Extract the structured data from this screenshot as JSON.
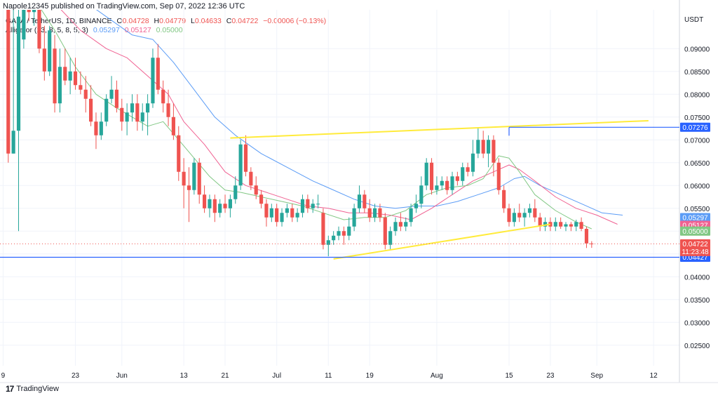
{
  "header": {
    "published": "Napole12345 published on TradingView.com, Sep 07, 2022 12:36 UTC"
  },
  "legend": {
    "symbol": "GALA / TetherUS, 1D, BINANCE",
    "ohlc": [
      {
        "k": "O",
        "v": "0.04728"
      },
      {
        "k": "H",
        "v": "0.04779"
      },
      {
        "k": "L",
        "v": "0.04633"
      },
      {
        "k": "C",
        "v": "0.04722"
      }
    ],
    "change": "−0.00006 (−0.13%)",
    "alligator_label": "Alligator (13, 8, 5, 8, 5, 3)",
    "alligator_values": [
      "0.05297",
      "0.05127",
      "0.05000"
    ]
  },
  "brand": {
    "logo": "17",
    "name": "TradingView"
  },
  "colors": {
    "up": "#26a69a",
    "down": "#ef5350",
    "jaw": "#5b9cf6",
    "teeth": "#f06292",
    "lips": "#81c784",
    "trend": "#ffeb3b",
    "level": "#2962ff",
    "grid": "#f0f3fa",
    "text": "#131722"
  },
  "chart_data": {
    "type": "candlestick",
    "currency_label": "USDT",
    "y_ticks": [
      "0.09000",
      "0.08500",
      "0.08000",
      "0.07500",
      "0.07000",
      "0.06500",
      "0.06000",
      "0.05500",
      "0.05000",
      "0.04500",
      "0.04000",
      "0.03500",
      "0.03000",
      "0.02500"
    ],
    "y_range": [
      0.0205,
      0.0985
    ],
    "x_ticks": [
      {
        "label": "9",
        "d": 0
      },
      {
        "label": "23",
        "d": 14
      },
      {
        "label": "Jun",
        "d": 23
      },
      {
        "label": "13",
        "d": 35
      },
      {
        "label": "21",
        "d": 43
      },
      {
        "label": "Jul",
        "d": 53
      },
      {
        "label": "11",
        "d": 63
      },
      {
        "label": "19",
        "d": 71
      },
      {
        "label": "Aug",
        "d": 84
      },
      {
        "label": "15",
        "d": 98
      },
      {
        "label": "23",
        "d": 106
      },
      {
        "label": "Sep",
        "d": 115
      },
      {
        "label": "12",
        "d": 126
      }
    ],
    "x_range": [
      -0.6,
      131
    ],
    "candles": [
      [
        1,
        0.115,
        0.13,
        0.065,
        0.067
      ],
      [
        2,
        0.067,
        0.099,
        0.067,
        0.072
      ],
      [
        3,
        0.072,
        0.099,
        0.05,
        0.097
      ],
      [
        4,
        0.092,
        0.125,
        0.09,
        0.105
      ],
      [
        5,
        0.105,
        0.118,
        0.096,
        0.098
      ],
      [
        6,
        0.098,
        0.11,
        0.095,
        0.108
      ],
      [
        7,
        0.108,
        0.112,
        0.089,
        0.09
      ],
      [
        8,
        0.09,
        0.095,
        0.083,
        0.085
      ],
      [
        9,
        0.085,
        0.095,
        0.084,
        0.094
      ],
      [
        10,
        0.09,
        0.093,
        0.076,
        0.078
      ],
      [
        11,
        0.078,
        0.09,
        0.076,
        0.086
      ],
      [
        12,
        0.086,
        0.09,
        0.082,
        0.083
      ],
      [
        13,
        0.083,
        0.088,
        0.08,
        0.085
      ],
      [
        14,
        0.085,
        0.088,
        0.081,
        0.082
      ],
      [
        15,
        0.082,
        0.085,
        0.08,
        0.081
      ],
      [
        16,
        0.081,
        0.084,
        0.076,
        0.079
      ],
      [
        17,
        0.079,
        0.082,
        0.073,
        0.074
      ],
      [
        18,
        0.074,
        0.076,
        0.068,
        0.071
      ],
      [
        19,
        0.071,
        0.076,
        0.07,
        0.074
      ],
      [
        20,
        0.074,
        0.08,
        0.073,
        0.079
      ],
      [
        21,
        0.079,
        0.084,
        0.078,
        0.081
      ],
      [
        22,
        0.081,
        0.083,
        0.076,
        0.077
      ],
      [
        23,
        0.077,
        0.079,
        0.072,
        0.074
      ],
      [
        24,
        0.074,
        0.078,
        0.071,
        0.076
      ],
      [
        25,
        0.076,
        0.08,
        0.074,
        0.078
      ],
      [
        26,
        0.078,
        0.08,
        0.072,
        0.074
      ],
      [
        27,
        0.074,
        0.078,
        0.072,
        0.076
      ],
      [
        28,
        0.076,
        0.08,
        0.071,
        0.078
      ],
      [
        29,
        0.078,
        0.09,
        0.077,
        0.088
      ],
      [
        30,
        0.088,
        0.091,
        0.08,
        0.081
      ],
      [
        31,
        0.081,
        0.083,
        0.076,
        0.078
      ],
      [
        32,
        0.078,
        0.081,
        0.073,
        0.075
      ],
      [
        33,
        0.075,
        0.078,
        0.07,
        0.071
      ],
      [
        34,
        0.071,
        0.073,
        0.061,
        0.063
      ],
      [
        35,
        0.063,
        0.066,
        0.055,
        0.06
      ],
      [
        36,
        0.06,
        0.064,
        0.052,
        0.059
      ],
      [
        37,
        0.059,
        0.066,
        0.058,
        0.065
      ],
      [
        38,
        0.065,
        0.066,
        0.056,
        0.058
      ],
      [
        39,
        0.058,
        0.06,
        0.054,
        0.055
      ],
      [
        40,
        0.055,
        0.058,
        0.053,
        0.057
      ],
      [
        41,
        0.057,
        0.058,
        0.052,
        0.054
      ],
      [
        42,
        0.054,
        0.057,
        0.053,
        0.056
      ],
      [
        43,
        0.056,
        0.058,
        0.054,
        0.055
      ],
      [
        44,
        0.055,
        0.058,
        0.053,
        0.057
      ],
      [
        45,
        0.057,
        0.062,
        0.056,
        0.06
      ],
      [
        46,
        0.06,
        0.07,
        0.059,
        0.069
      ],
      [
        47,
        0.069,
        0.071,
        0.062,
        0.063
      ],
      [
        48,
        0.063,
        0.064,
        0.059,
        0.06
      ],
      [
        49,
        0.06,
        0.062,
        0.057,
        0.058
      ],
      [
        50,
        0.058,
        0.059,
        0.055,
        0.056
      ],
      [
        51,
        0.056,
        0.057,
        0.051,
        0.053
      ],
      [
        52,
        0.053,
        0.056,
        0.052,
        0.055
      ],
      [
        53,
        0.055,
        0.056,
        0.051,
        0.052
      ],
      [
        54,
        0.052,
        0.055,
        0.051,
        0.054
      ],
      [
        55,
        0.054,
        0.056,
        0.053,
        0.055
      ],
      [
        56,
        0.055,
        0.056,
        0.052,
        0.053
      ],
      [
        57,
        0.053,
        0.055,
        0.052,
        0.054
      ],
      [
        58,
        0.054,
        0.058,
        0.053,
        0.057
      ],
      [
        59,
        0.057,
        0.058,
        0.054,
        0.055
      ],
      [
        60,
        0.055,
        0.057,
        0.054,
        0.056
      ],
      [
        61,
        0.056,
        0.058,
        0.055,
        0.056
      ],
      [
        62,
        0.054,
        0.055,
        0.046,
        0.047
      ],
      [
        63,
        0.047,
        0.049,
        0.0445,
        0.048
      ],
      [
        64,
        0.048,
        0.05,
        0.047,
        0.049
      ],
      [
        65,
        0.049,
        0.051,
        0.048,
        0.05
      ],
      [
        66,
        0.05,
        0.051,
        0.047,
        0.049
      ],
      [
        67,
        0.049,
        0.053,
        0.048,
        0.051
      ],
      [
        68,
        0.051,
        0.056,
        0.05,
        0.055
      ],
      [
        69,
        0.055,
        0.06,
        0.054,
        0.058
      ],
      [
        70,
        0.058,
        0.059,
        0.054,
        0.055
      ],
      [
        71,
        0.055,
        0.057,
        0.052,
        0.053
      ],
      [
        72,
        0.053,
        0.056,
        0.052,
        0.055
      ],
      [
        73,
        0.055,
        0.056,
        0.052,
        0.053
      ],
      [
        74,
        0.053,
        0.054,
        0.046,
        0.047
      ],
      [
        75,
        0.047,
        0.051,
        0.046,
        0.05
      ],
      [
        76,
        0.05,
        0.053,
        0.049,
        0.052
      ],
      [
        77,
        0.052,
        0.054,
        0.05,
        0.051
      ],
      [
        78,
        0.051,
        0.053,
        0.05,
        0.052
      ],
      [
        79,
        0.052,
        0.056,
        0.051,
        0.055
      ],
      [
        80,
        0.055,
        0.058,
        0.054,
        0.056
      ],
      [
        81,
        0.056,
        0.062,
        0.055,
        0.06
      ],
      [
        82,
        0.06,
        0.066,
        0.059,
        0.065
      ],
      [
        83,
        0.065,
        0.066,
        0.058,
        0.059
      ],
      [
        84,
        0.059,
        0.062,
        0.058,
        0.06
      ],
      [
        85,
        0.06,
        0.062,
        0.059,
        0.061
      ],
      [
        86,
        0.061,
        0.062,
        0.058,
        0.059
      ],
      [
        87,
        0.059,
        0.063,
        0.058,
        0.062
      ],
      [
        88,
        0.062,
        0.063,
        0.06,
        0.061
      ],
      [
        89,
        0.061,
        0.065,
        0.06,
        0.064
      ],
      [
        90,
        0.064,
        0.065,
        0.062,
        0.063
      ],
      [
        91,
        0.063,
        0.07,
        0.062,
        0.067
      ],
      [
        92,
        0.067,
        0.0727,
        0.066,
        0.07
      ],
      [
        93,
        0.07,
        0.072,
        0.066,
        0.067
      ],
      [
        94,
        0.067,
        0.071,
        0.064,
        0.07
      ],
      [
        95,
        0.07,
        0.071,
        0.062,
        0.065
      ],
      [
        96,
        0.065,
        0.066,
        0.058,
        0.059
      ],
      [
        97,
        0.059,
        0.06,
        0.054,
        0.055
      ],
      [
        98,
        0.055,
        0.056,
        0.051,
        0.052
      ],
      [
        99,
        0.052,
        0.055,
        0.051,
        0.054
      ],
      [
        100,
        0.054,
        0.056,
        0.052,
        0.053
      ],
      [
        101,
        0.053,
        0.055,
        0.051,
        0.054
      ],
      [
        102,
        0.054,
        0.056,
        0.053,
        0.055
      ],
      [
        103,
        0.055,
        0.057,
        0.052,
        0.053
      ],
      [
        104,
        0.053,
        0.054,
        0.05,
        0.051
      ],
      [
        105,
        0.051,
        0.053,
        0.05,
        0.052
      ],
      [
        106,
        0.052,
        0.053,
        0.05,
        0.051
      ],
      [
        107,
        0.051,
        0.053,
        0.05,
        0.052
      ],
      [
        108,
        0.052,
        0.053,
        0.0505,
        0.051
      ],
      [
        109,
        0.051,
        0.052,
        0.05,
        0.0515
      ],
      [
        110,
        0.0515,
        0.052,
        0.05,
        0.051
      ],
      [
        111,
        0.051,
        0.0525,
        0.05,
        0.052
      ],
      [
        112,
        0.052,
        0.053,
        0.05,
        0.0505
      ],
      [
        113,
        0.0505,
        0.051,
        0.0463,
        0.0473
      ],
      [
        114,
        0.04728,
        0.04779,
        0.04633,
        0.04722
      ]
    ],
    "alligator": {
      "jaw": [
        [
          6,
          0.11
        ],
        [
          10,
          0.104
        ],
        [
          15,
          0.101
        ],
        [
          20,
          0.097
        ],
        [
          25,
          0.093
        ],
        [
          29,
          0.092
        ],
        [
          33,
          0.087
        ],
        [
          37,
          0.081
        ],
        [
          41,
          0.075
        ],
        [
          45,
          0.071
        ],
        [
          50,
          0.067
        ],
        [
          55,
          0.064
        ],
        [
          60,
          0.061
        ],
        [
          63,
          0.0595
        ],
        [
          68,
          0.057
        ],
        [
          72,
          0.0555
        ],
        [
          76,
          0.055
        ],
        [
          80,
          0.0555
        ],
        [
          84,
          0.0555
        ],
        [
          88,
          0.0565
        ],
        [
          92,
          0.058
        ],
        [
          96,
          0.0595
        ],
        [
          99,
          0.0615
        ],
        [
          101,
          0.062
        ],
        [
          104,
          0.06
        ],
        [
          108,
          0.058
        ],
        [
          112,
          0.056
        ],
        [
          116,
          0.054
        ],
        [
          120,
          0.0535
        ]
      ],
      "teeth": [
        [
          6,
          0.107
        ],
        [
          10,
          0.1
        ],
        [
          15,
          0.094
        ],
        [
          20,
          0.09
        ],
        [
          24,
          0.088
        ],
        [
          28,
          0.084
        ],
        [
          32,
          0.08
        ],
        [
          35,
          0.074
        ],
        [
          39,
          0.069
        ],
        [
          43,
          0.063
        ],
        [
          47,
          0.06
        ],
        [
          51,
          0.0585
        ],
        [
          55,
          0.057
        ],
        [
          59,
          0.0555
        ],
        [
          63,
          0.055
        ],
        [
          67,
          0.054
        ],
        [
          71,
          0.054
        ],
        [
          75,
          0.0535
        ],
        [
          79,
          0.0525
        ],
        [
          83,
          0.055
        ],
        [
          87,
          0.058
        ],
        [
          91,
          0.061
        ],
        [
          95,
          0.063
        ],
        [
          98,
          0.0645
        ],
        [
          100,
          0.0635
        ],
        [
          103,
          0.061
        ],
        [
          107,
          0.0575
        ],
        [
          111,
          0.055
        ],
        [
          115,
          0.0535
        ],
        [
          119,
          0.0515
        ]
      ],
      "lips": [
        [
          6,
          0.101
        ],
        [
          10,
          0.094
        ],
        [
          14,
          0.086
        ],
        [
          18,
          0.08
        ],
        [
          22,
          0.077
        ],
        [
          25,
          0.075
        ],
        [
          28,
          0.073
        ],
        [
          31,
          0.074
        ],
        [
          34,
          0.07
        ],
        [
          37,
          0.066
        ],
        [
          40,
          0.062
        ],
        [
          43,
          0.059
        ],
        [
          46,
          0.0585
        ],
        [
          50,
          0.0575
        ],
        [
          54,
          0.0565
        ],
        [
          58,
          0.0555
        ],
        [
          62,
          0.054
        ],
        [
          66,
          0.0525
        ],
        [
          70,
          0.053
        ],
        [
          74,
          0.053
        ],
        [
          78,
          0.0545
        ],
        [
          82,
          0.058
        ],
        [
          86,
          0.0595
        ],
        [
          90,
          0.06
        ],
        [
          93,
          0.0615
        ],
        [
          96,
          0.0665
        ],
        [
          98,
          0.066
        ],
        [
          100,
          0.063
        ],
        [
          103,
          0.058
        ],
        [
          107,
          0.0545
        ],
        [
          111,
          0.052
        ],
        [
          114,
          0.0505
        ]
      ]
    },
    "trendlines": [
      {
        "from": [
          44,
          0.0704
        ],
        "to": [
          125,
          0.0742
        ]
      },
      {
        "from": [
          64,
          0.0439
        ],
        "to": [
          106,
          0.0515
        ]
      }
    ],
    "levels": [
      {
        "label": "0.07276",
        "value": 0.07276,
        "from": 98
      },
      {
        "label": "0.04427",
        "value": 0.04427,
        "from": -0.6
      }
    ],
    "price_labels": [
      {
        "label": "0.05297",
        "value": 0.05297,
        "color": "jaw"
      },
      {
        "label": "0.05127",
        "value": 0.05127,
        "color": "teeth"
      },
      {
        "label": "0.05000",
        "value": 0.05,
        "color": "lips"
      }
    ],
    "last": {
      "price": "0.04722",
      "value": 0.04722,
      "countdown": "11:23:48"
    }
  }
}
